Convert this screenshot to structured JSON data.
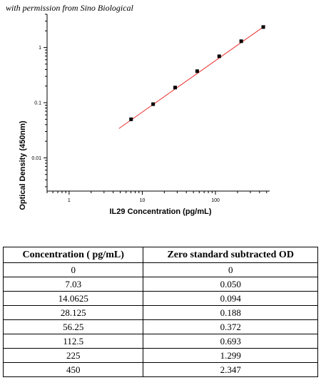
{
  "credit": "with permission from Sino Biological",
  "chart_data": {
    "type": "scatter",
    "xlabel": "IL29 Concentration (pg/mL)",
    "ylabel": "Optical Density (450nm)",
    "x_scale": "log",
    "y_scale": "log",
    "xlim": [
      0.5,
      550
    ],
    "ylim": [
      0.0025,
      4
    ],
    "x_tick_labels": [
      "1",
      "10",
      "100"
    ],
    "y_tick_labels": [
      "0.01",
      "0.1",
      "1"
    ],
    "grid": false,
    "series": [
      {
        "x": [
          7.03,
          14.0625,
          28.125,
          56.25,
          112.5,
          225,
          450
        ],
        "y": [
          0.05,
          0.094,
          0.188,
          0.372,
          0.693,
          1.299,
          2.347
        ],
        "color": "#000000"
      }
    ],
    "fit_line": {
      "x": [
        4.8,
        480
      ],
      "y": [
        0.034,
        2.5
      ],
      "color": "#e8302f"
    }
  },
  "table": {
    "headers": [
      "Concentration ( pg/mL)",
      "Zero standard subtracted OD"
    ],
    "rows": [
      [
        "0",
        "0"
      ],
      [
        "7.03",
        "0.050"
      ],
      [
        "14.0625",
        "0.094"
      ],
      [
        "28.125",
        "0.188"
      ],
      [
        "56.25",
        "0.372"
      ],
      [
        "112.5",
        "0.693"
      ],
      [
        "225",
        "1.299"
      ],
      [
        "450",
        "2.347"
      ]
    ]
  }
}
